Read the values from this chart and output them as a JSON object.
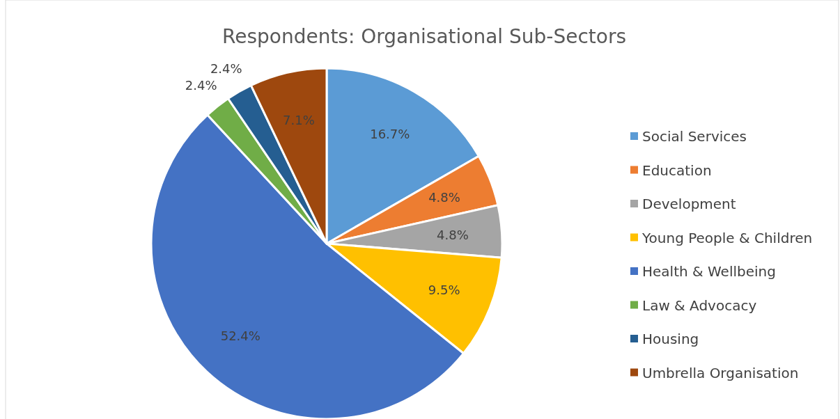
{
  "chart_data": {
    "type": "pie",
    "title": "Respondents: Organisational Sub-Sectors",
    "categories": [
      "Social Services",
      "Education",
      "Development",
      "Young People & Children",
      "Health & Wellbeing",
      "Law & Advocacy",
      "Housing",
      "Umbrella Organisation"
    ],
    "values": [
      16.7,
      4.8,
      4.8,
      9.5,
      52.4,
      2.4,
      2.4,
      7.1
    ],
    "colors": [
      "#5b9bd5",
      "#ed7d31",
      "#a5a5a5",
      "#ffc000",
      "#4472c4",
      "#70ad47",
      "#255e91",
      "#9e480e"
    ],
    "value_labels": [
      "16.7%",
      "4.8%",
      "4.8%",
      "9.5%",
      "52.4%",
      "2.4%",
      "2.4%",
      "7.1%"
    ],
    "legend": "right"
  }
}
